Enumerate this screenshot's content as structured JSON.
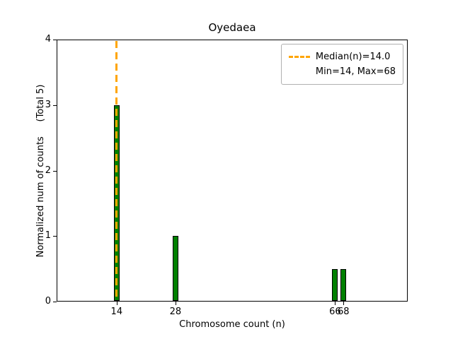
{
  "chart_data": {
    "type": "bar",
    "title": "Oyedaea",
    "xlabel": "Chromosome count (n)",
    "ylabel": "Normalized num of counts     (Total 5)",
    "bars": [
      {
        "x": 14,
        "height": 3
      },
      {
        "x": 28,
        "height": 1
      },
      {
        "x": 66,
        "height": 0.5
      },
      {
        "x": 68,
        "height": 0.5
      }
    ],
    "total_counts": 5,
    "xlim": [
      -0.3,
      83.3
    ],
    "ylim": [
      0,
      4
    ],
    "xticks": [
      14,
      28,
      66,
      68
    ],
    "yticks": [
      0,
      1,
      2,
      3,
      4
    ],
    "median_line": {
      "x": 14,
      "label": "Median(n)=14.0"
    },
    "legend": [
      "Median(n)=14.0",
      "Min=14, Max=68"
    ],
    "colors": {
      "bar_fill": "#008000",
      "bar_edge": "#000000",
      "median": "#FFA500"
    },
    "grid": false,
    "legend_position": "upper right"
  }
}
